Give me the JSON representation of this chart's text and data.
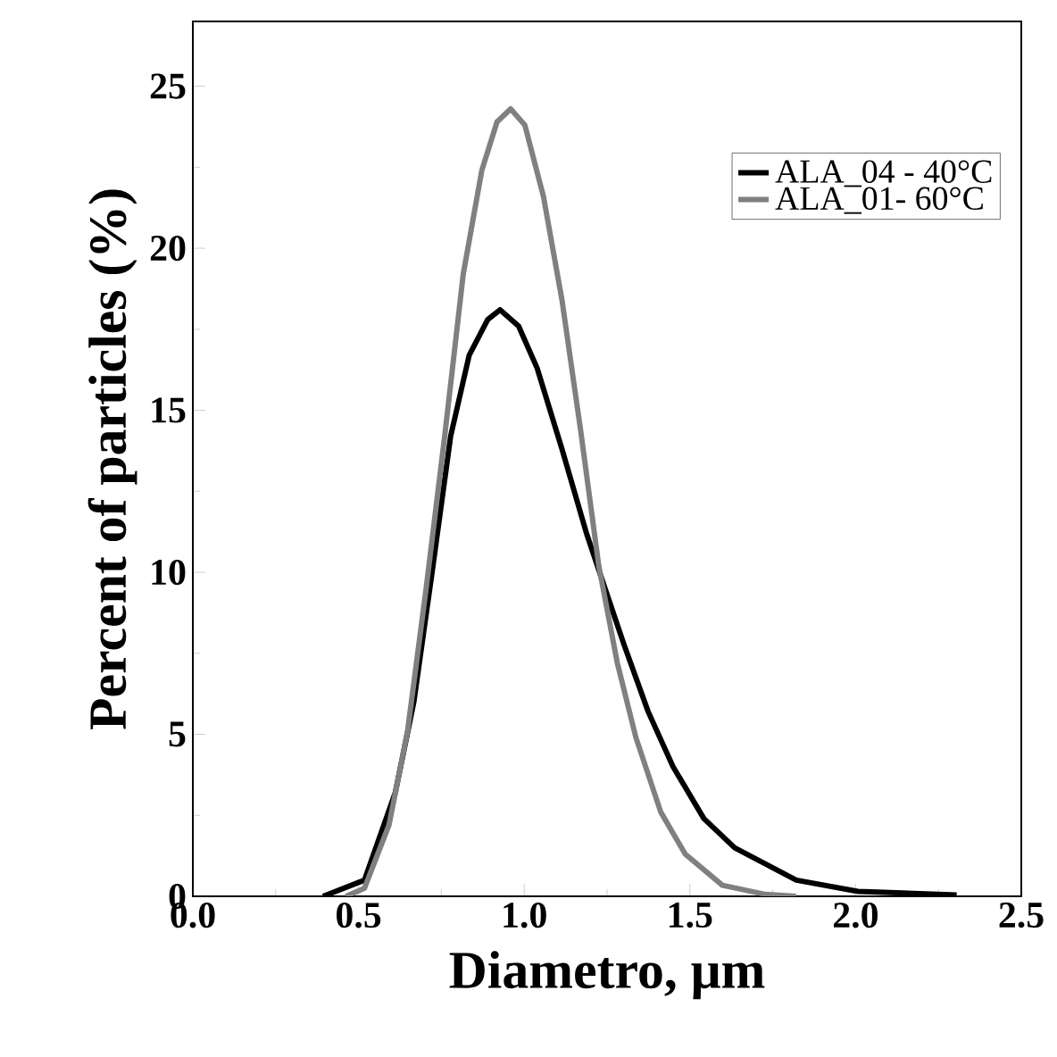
{
  "chart_data": {
    "type": "line",
    "xlabel": "Diametro, μm",
    "ylabel": "Percent of particles (%)",
    "xlim": [
      0,
      2.5
    ],
    "ylim": [
      0,
      27
    ],
    "xticks": [
      {
        "value": 0,
        "label": "0.0"
      },
      0.5,
      {
        "value": 1,
        "label": "1.0"
      },
      1.5,
      {
        "value": 2,
        "label": "2.0"
      },
      2.5
    ],
    "yticks": [
      0,
      5,
      10,
      15,
      20,
      25
    ],
    "grid": false,
    "legend": "top right",
    "marker": "none",
    "line_style": "solid",
    "series": [
      {
        "name": "ALA_04 - 40°C",
        "color": "#000000",
        "x": [
          0.393,
          0.518,
          0.611,
          0.667,
          0.722,
          0.778,
          0.834,
          0.89,
          0.927,
          0.983,
          1.039,
          1.114,
          1.188,
          1.244,
          1.3,
          1.374,
          1.449,
          1.542,
          1.635,
          1.821,
          2.007,
          2.305
        ],
        "values": [
          0,
          0.5,
          3.2,
          6.0,
          10,
          14.2,
          16.7,
          17.8,
          18.1,
          17.6,
          16.3,
          13.8,
          11.2,
          9.5,
          7.8,
          5.7,
          4.0,
          2.4,
          1.5,
          0.5,
          0.15,
          0.04
        ]
      },
      {
        "name": "ALA_01- 60°C",
        "color": "#808080",
        "x": [
          0.462,
          0.518,
          0.592,
          0.648,
          0.704,
          0.76,
          0.816,
          0.872,
          0.918,
          0.959,
          1.002,
          1.058,
          1.114,
          1.17,
          1.225,
          1.281,
          1.337,
          1.412,
          1.486,
          1.598,
          1.728,
          1.82
        ],
        "values": [
          0,
          0.25,
          2.2,
          5.1,
          9.5,
          14.2,
          19.2,
          22.4,
          23.9,
          24.3,
          23.8,
          21.6,
          18.4,
          14.4,
          10.2,
          7.2,
          4.9,
          2.6,
          1.3,
          0.34,
          0.06,
          0
        ]
      }
    ]
  }
}
